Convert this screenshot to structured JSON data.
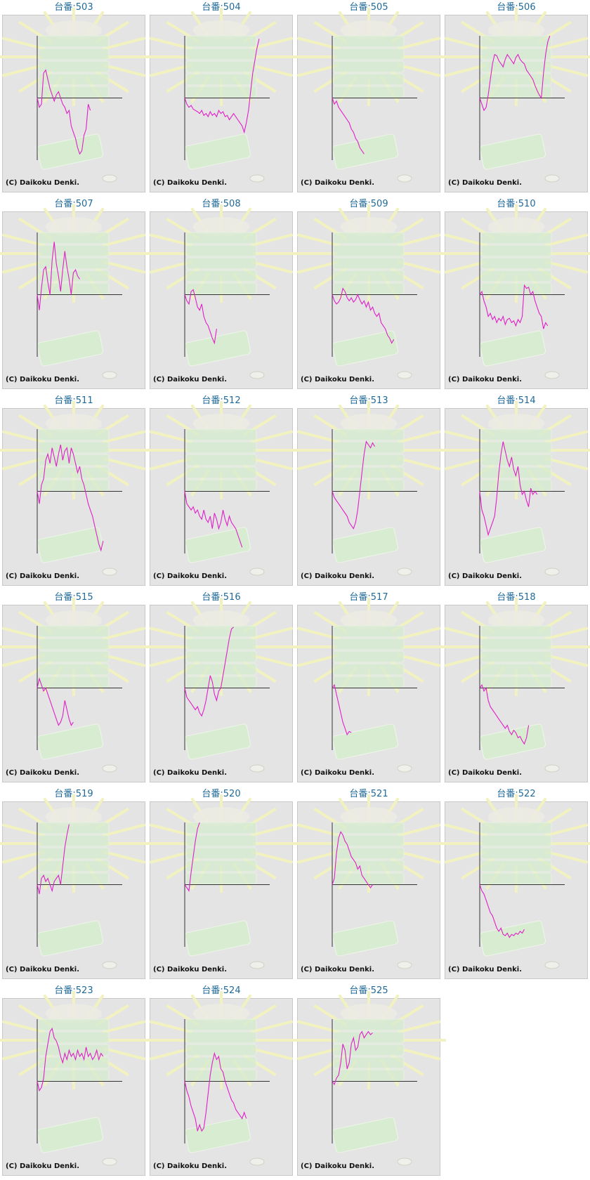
{
  "chart_data": [
    {
      "type": "line",
      "title": "台番:503",
      "footer": "(C) Daikoku Denki.",
      "color": "#e020c8",
      "xlim": [
        0,
        40
      ],
      "ylim": [
        -100,
        100
      ],
      "values": [
        0,
        -15,
        -10,
        40,
        45,
        30,
        15,
        5,
        -5,
        5,
        10,
        0,
        -10,
        -15,
        -25,
        -20,
        -45,
        -55,
        -65,
        -80,
        -90,
        -85,
        -60,
        -50,
        -10,
        -20
      ]
    },
    {
      "type": "line",
      "title": "台番:504",
      "footer": "(C) Daikoku Denki.",
      "color": "#e020c8",
      "xlim": [
        0,
        40
      ],
      "ylim": [
        -100,
        100
      ],
      "values": [
        0,
        -10,
        -15,
        -12,
        -18,
        -20,
        -22,
        -25,
        -20,
        -28,
        -25,
        -30,
        -22,
        -28,
        -25,
        -30,
        -20,
        -25,
        -22,
        -30,
        -28,
        -35,
        -30,
        -25,
        -30,
        -35,
        -40,
        -45,
        -55,
        -40,
        -20,
        10,
        40,
        60,
        80,
        95
      ]
    },
    {
      "type": "line",
      "title": "台番:505",
      "footer": "(C) Daikoku Denki.",
      "color": "#e020c8",
      "xlim": [
        0,
        40
      ],
      "ylim": [
        -100,
        100
      ],
      "values": [
        0,
        -10,
        -5,
        -15,
        -20,
        -25,
        -30,
        -35,
        -40,
        -50,
        -55,
        -65,
        -70,
        -80,
        -85,
        -90
      ]
    },
    {
      "type": "line",
      "title": "台番:506",
      "footer": "(C) Daikoku Denki.",
      "color": "#e020c8",
      "xlim": [
        0,
        40
      ],
      "ylim": [
        -100,
        100
      ],
      "values": [
        0,
        -10,
        -20,
        -15,
        5,
        30,
        55,
        70,
        68,
        60,
        55,
        50,
        62,
        70,
        65,
        60,
        55,
        65,
        70,
        62,
        58,
        55,
        45,
        40,
        35,
        30,
        20,
        12,
        5,
        0,
        40,
        70,
        90,
        100
      ]
    },
    {
      "type": "line",
      "title": "台番:507",
      "footer": "(C) Daikoku Denki.",
      "color": "#e020c8",
      "xlim": [
        0,
        40
      ],
      "ylim": [
        -100,
        100
      ],
      "values": [
        0,
        -25,
        10,
        40,
        45,
        20,
        0,
        55,
        85,
        50,
        30,
        5,
        40,
        70,
        45,
        25,
        0,
        35,
        40,
        30,
        25
      ]
    },
    {
      "type": "line",
      "title": "台番:508",
      "footer": "(C) Daikoku Denki.",
      "color": "#e020c8",
      "xlim": [
        0,
        40
      ],
      "ylim": [
        -100,
        100
      ],
      "values": [
        0,
        -10,
        -15,
        5,
        8,
        -5,
        -20,
        -25,
        -15,
        -35,
        -45,
        -50,
        -60,
        -70,
        -78,
        -55
      ]
    },
    {
      "type": "line",
      "title": "台番:509",
      "footer": "(C) Daikoku Denki.",
      "color": "#e020c8",
      "xlim": [
        0,
        40
      ],
      "ylim": [
        -100,
        100
      ],
      "values": [
        0,
        -10,
        -15,
        -12,
        -5,
        10,
        5,
        -5,
        -10,
        -5,
        -12,
        -8,
        0,
        -8,
        -15,
        -10,
        -20,
        -12,
        -25,
        -20,
        -30,
        -35,
        -30,
        -45,
        -50,
        -55,
        -65,
        -70,
        -78,
        -72
      ]
    },
    {
      "type": "line",
      "title": "台番:510",
      "footer": "(C) Daikoku Denki.",
      "color": "#e020c8",
      "xlim": [
        0,
        40
      ],
      "ylim": [
        -100,
        100
      ],
      "values": [
        0,
        5,
        -10,
        -20,
        -35,
        -30,
        -40,
        -35,
        -45,
        -38,
        -42,
        -35,
        -48,
        -40,
        -38,
        -45,
        -42,
        -50,
        -40,
        -45,
        -35,
        15,
        10,
        12,
        0,
        5,
        -10,
        -20,
        -30,
        -35,
        -55,
        -45,
        -50
      ]
    },
    {
      "type": "line",
      "title": "台番:511",
      "footer": "(C) Daikoku Denki.",
      "color": "#e020c8",
      "xlim": [
        0,
        40
      ],
      "ylim": [
        -100,
        100
      ],
      "values": [
        0,
        -20,
        10,
        20,
        50,
        60,
        45,
        70,
        55,
        40,
        60,
        75,
        50,
        65,
        70,
        45,
        70,
        60,
        45,
        30,
        40,
        20,
        10,
        -5,
        -20,
        -30,
        -40,
        -55,
        -70,
        -85,
        -95,
        -80
      ]
    },
    {
      "type": "line",
      "title": "台番:512",
      "footer": "(C) Daikoku Denki.",
      "color": "#e020c8",
      "xlim": [
        0,
        40
      ],
      "ylim": [
        -100,
        100
      ],
      "values": [
        0,
        -20,
        -25,
        -30,
        -25,
        -35,
        -30,
        -40,
        -45,
        -30,
        -45,
        -50,
        -40,
        -60,
        -35,
        -45,
        -60,
        -50,
        -30,
        -45,
        -55,
        -40,
        -50,
        -55,
        -60,
        -70,
        -80,
        -90
      ]
    },
    {
      "type": "line",
      "title": "台番:513",
      "footer": "(C) Daikoku Denki.",
      "color": "#e020c8",
      "xlim": [
        0,
        40
      ],
      "ylim": [
        -100,
        100
      ],
      "values": [
        0,
        -10,
        -15,
        -20,
        -25,
        -30,
        -35,
        -40,
        -50,
        -55,
        -60,
        -50,
        -30,
        0,
        30,
        60,
        80,
        75,
        70,
        78,
        72
      ]
    },
    {
      "type": "line",
      "title": "台番:514",
      "footer": "(C) Daikoku Denki.",
      "color": "#e020c8",
      "xlim": [
        0,
        40
      ],
      "ylim": [
        -100,
        100
      ],
      "values": [
        0,
        -30,
        -40,
        -55,
        -70,
        -60,
        -50,
        -40,
        -10,
        30,
        60,
        80,
        65,
        50,
        40,
        55,
        35,
        25,
        40,
        10,
        -5,
        0,
        -15,
        -25,
        5,
        -5,
        0,
        -5
      ]
    },
    {
      "type": "line",
      "title": "台番:515",
      "footer": "(C) Daikoku Denki.",
      "color": "#e020c8",
      "xlim": [
        0,
        40
      ],
      "ylim": [
        -100,
        100
      ],
      "values": [
        0,
        15,
        5,
        -5,
        0,
        -10,
        -20,
        -30,
        -40,
        -50,
        -60,
        -55,
        -45,
        -20,
        -35,
        -50,
        -60,
        -55
      ]
    },
    {
      "type": "line",
      "title": "台番:516",
      "footer": "(C) Daikoku Denki.",
      "color": "#e020c8",
      "xlim": [
        0,
        40
      ],
      "ylim": [
        -100,
        100
      ],
      "values": [
        0,
        -15,
        -20,
        -25,
        -30,
        -35,
        -30,
        -40,
        -45,
        -35,
        -20,
        0,
        20,
        10,
        -10,
        -20,
        -5,
        0,
        20,
        40,
        60,
        80,
        95,
        98
      ]
    },
    {
      "type": "line",
      "title": "台番:517",
      "footer": "(C) Daikoku Denki.",
      "color": "#e020c8",
      "xlim": [
        0,
        40
      ],
      "ylim": [
        -100,
        100
      ],
      "values": [
        0,
        5,
        -10,
        -25,
        -40,
        -55,
        -65,
        -75,
        -70,
        -72
      ]
    },
    {
      "type": "line",
      "title": "台番:518",
      "footer": "(C) Daikoku Denki.",
      "color": "#e020c8",
      "xlim": [
        0,
        40
      ],
      "ylim": [
        -100,
        100
      ],
      "values": [
        0,
        5,
        -5,
        0,
        -20,
        -30,
        -35,
        -40,
        -45,
        -50,
        -55,
        -60,
        -65,
        -60,
        -70,
        -75,
        -68,
        -72,
        -80,
        -78,
        -85,
        -90,
        -80,
        -60
      ]
    },
    {
      "type": "line",
      "title": "台番:519",
      "footer": "(C) Daikoku Denki.",
      "color": "#e020c8",
      "xlim": [
        0,
        40
      ],
      "ylim": [
        -100,
        100
      ],
      "values": [
        0,
        -15,
        10,
        15,
        5,
        10,
        0,
        -10,
        5,
        10,
        15,
        0,
        30,
        60,
        80,
        97
      ]
    },
    {
      "type": "line",
      "title": "台番:520",
      "footer": "(C) Daikoku Denki.",
      "color": "#e020c8",
      "xlim": [
        0,
        40
      ],
      "ylim": [
        -100,
        100
      ],
      "values": [
        0,
        -5,
        -10,
        20,
        45,
        70,
        90,
        100
      ]
    },
    {
      "type": "line",
      "title": "台番:521",
      "footer": "(C) Daikoku Denki.",
      "color": "#e020c8",
      "xlim": [
        0,
        40
      ],
      "ylim": [
        -100,
        100
      ],
      "values": [
        0,
        10,
        50,
        75,
        85,
        80,
        70,
        65,
        55,
        45,
        40,
        35,
        25,
        30,
        15,
        10,
        5,
        0,
        -5,
        0
      ]
    },
    {
      "type": "line",
      "title": "台番:522",
      "footer": "(C) Daikoku Denki.",
      "color": "#e020c8",
      "xlim": [
        0,
        40
      ],
      "ylim": [
        -100,
        100
      ],
      "values": [
        0,
        -10,
        -15,
        -25,
        -35,
        -45,
        -50,
        -60,
        -70,
        -75,
        -70,
        -80,
        -82,
        -78,
        -85,
        -80,
        -82,
        -78,
        -80,
        -75,
        -78,
        -72
      ]
    },
    {
      "type": "line",
      "title": "台番:523",
      "footer": "(C) Daikoku Denki.",
      "color": "#e020c8",
      "xlim": [
        0,
        40
      ],
      "ylim": [
        -100,
        100
      ],
      "values": [
        0,
        -15,
        -10,
        5,
        40,
        60,
        80,
        85,
        70,
        65,
        55,
        40,
        30,
        45,
        35,
        50,
        40,
        45,
        35,
        50,
        40,
        45,
        35,
        55,
        40,
        45,
        35,
        40,
        50,
        35,
        45,
        40
      ]
    },
    {
      "type": "line",
      "title": "台番:524",
      "footer": "(C) Daikoku Denki.",
      "color": "#e020c8",
      "xlim": [
        0,
        40
      ],
      "ylim": [
        -100,
        100
      ],
      "values": [
        0,
        -15,
        -25,
        -40,
        -50,
        -60,
        -80,
        -70,
        -80,
        -75,
        -50,
        -20,
        10,
        30,
        45,
        35,
        40,
        20,
        15,
        0,
        -10,
        -20,
        -30,
        -35,
        -45,
        -50,
        -55,
        -60,
        -50,
        -60
      ]
    },
    {
      "type": "line",
      "title": "台番:525",
      "footer": "(C) Daikoku Denki.",
      "color": "#e020c8",
      "xlim": [
        0,
        40
      ],
      "ylim": [
        -100,
        100
      ],
      "values": [
        0,
        -5,
        5,
        10,
        30,
        60,
        50,
        20,
        30,
        60,
        70,
        50,
        55,
        75,
        80,
        70,
        75,
        80,
        75,
        78
      ]
    }
  ]
}
